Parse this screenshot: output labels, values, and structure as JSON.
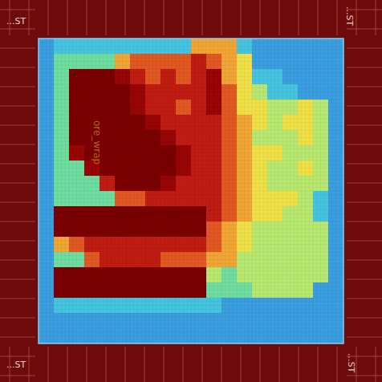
{
  "chart_data": {
    "type": "heatmap",
    "cells": [
      [
        1,
        2,
        2,
        2,
        2,
        2,
        2,
        2,
        2,
        2,
        6,
        6,
        6,
        2,
        1,
        1,
        1,
        1,
        1,
        1
      ],
      [
        1,
        3,
        3,
        3,
        3,
        6,
        7,
        7,
        7,
        7,
        8,
        7,
        6,
        5,
        1,
        1,
        1,
        1,
        1,
        1
      ],
      [
        1,
        3,
        10,
        10,
        10,
        9,
        8,
        7,
        8,
        7,
        8,
        9,
        6,
        5,
        2,
        2,
        1,
        1,
        1,
        1
      ],
      [
        1,
        3,
        10,
        10,
        10,
        10,
        9,
        8,
        8,
        8,
        8,
        9,
        7,
        5,
        4,
        2,
        2,
        1,
        1,
        1
      ],
      [
        1,
        3,
        10,
        10,
        10,
        10,
        9,
        8,
        8,
        7,
        8,
        9,
        7,
        5,
        5,
        4,
        4,
        5,
        4,
        1
      ],
      [
        1,
        3,
        10,
        10,
        10,
        10,
        10,
        9,
        8,
        8,
        8,
        8,
        7,
        6,
        5,
        4,
        5,
        5,
        4,
        1
      ],
      [
        1,
        3,
        10,
        10,
        10,
        10,
        10,
        10,
        9,
        8,
        8,
        8,
        7,
        6,
        4,
        4,
        4,
        5,
        4,
        1
      ],
      [
        1,
        3,
        9,
        10,
        10,
        10,
        10,
        10,
        10,
        9,
        8,
        8,
        7,
        6,
        5,
        5,
        4,
        4,
        4,
        1
      ],
      [
        1,
        3,
        3,
        9,
        10,
        10,
        10,
        10,
        10,
        9,
        8,
        8,
        7,
        6,
        5,
        4,
        4,
        5,
        4,
        1
      ],
      [
        1,
        3,
        3,
        3,
        8,
        10,
        10,
        10,
        9,
        8,
        8,
        8,
        7,
        6,
        5,
        4,
        4,
        4,
        4,
        1
      ],
      [
        1,
        3,
        3,
        3,
        3,
        7,
        7,
        8,
        8,
        8,
        8,
        8,
        7,
        6,
        5,
        5,
        5,
        4,
        2,
        1
      ],
      [
        1,
        10,
        10,
        10,
        10,
        10,
        10,
        10,
        10,
        10,
        10,
        8,
        7,
        6,
        5,
        5,
        4,
        4,
        2,
        1
      ],
      [
        1,
        10,
        10,
        10,
        10,
        10,
        10,
        10,
        10,
        10,
        10,
        7,
        6,
        5,
        4,
        4,
        4,
        4,
        4,
        1
      ],
      [
        1,
        6,
        7,
        8,
        8,
        8,
        8,
        8,
        8,
        8,
        8,
        7,
        6,
        5,
        4,
        4,
        4,
        4,
        4,
        1
      ],
      [
        1,
        3,
        3,
        7,
        8,
        8,
        8,
        8,
        7,
        7,
        7,
        6,
        6,
        4,
        4,
        4,
        4,
        4,
        4,
        1
      ],
      [
        1,
        10,
        10,
        10,
        10,
        10,
        10,
        10,
        10,
        10,
        10,
        4,
        3,
        4,
        4,
        4,
        4,
        4,
        4,
        1
      ],
      [
        1,
        10,
        10,
        10,
        10,
        10,
        10,
        10,
        10,
        10,
        10,
        3,
        3,
        3,
        4,
        4,
        4,
        4,
        1,
        1
      ],
      [
        1,
        2,
        2,
        2,
        2,
        2,
        2,
        2,
        2,
        2,
        2,
        2,
        1,
        1,
        1,
        1,
        1,
        1,
        1,
        1
      ],
      [
        1,
        1,
        1,
        1,
        1,
        1,
        1,
        1,
        1,
        1,
        1,
        1,
        1,
        1,
        1,
        1,
        1,
        1,
        1,
        1
      ],
      [
        1,
        1,
        1,
        1,
        1,
        1,
        1,
        1,
        1,
        1,
        1,
        1,
        1,
        1,
        1,
        1,
        1,
        1,
        1,
        1
      ]
    ],
    "color_range": [
      0,
      10
    ],
    "tick_labels": false,
    "annotations": [
      "...ST",
      "...ST",
      "...ST",
      "...ST",
      "ore_wrap"
    ]
  }
}
